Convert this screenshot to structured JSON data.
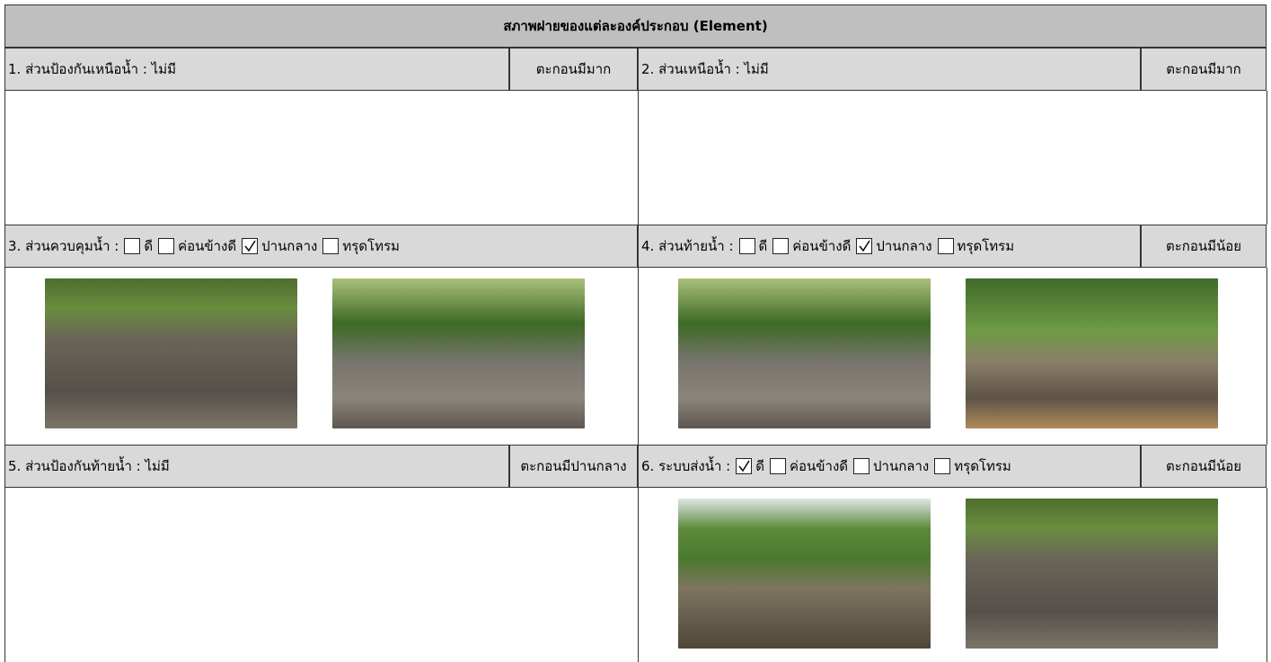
{
  "title": "สภาพฝายของแต่ละองค์ประกอบ (Element)",
  "sections": [
    {
      "label": "1. ส่วนป้องกันเหนือน้ำ : ไม่มี",
      "status": "ตะกอนมีมาก"
    },
    {
      "label": "2. ส่วนเหนือน้ำ : ไม่มี",
      "status": "ตะกอนมีมาก"
    },
    {
      "label": "3. ส่วนควบคุมน้ำ :",
      "options": [
        {
          "label": "ดี",
          "checked": false
        },
        {
          "label": "ค่อนข้างดี",
          "checked": false
        },
        {
          "label": "ปานกลาง",
          "checked": true
        },
        {
          "label": "ทรุดโทรม",
          "checked": false
        }
      ]
    },
    {
      "label": "4. ส่วนท้ายน้ำ :",
      "options": [
        {
          "label": "ดี",
          "checked": false
        },
        {
          "label": "ค่อนข้างดี",
          "checked": false
        },
        {
          "label": "ปานกลาง",
          "checked": true
        },
        {
          "label": "ทรุดโทรม",
          "checked": false
        }
      ],
      "status": "ตะกอนมีน้อย"
    },
    {
      "label": "5. ส่วนป้องกันท้ายน้ำ : ไม่มี",
      "status": "ตะกอนมีปานกลาง"
    },
    {
      "label": "6. ระบบส่งน้ำ :",
      "options": [
        {
          "label": "ดี",
          "checked": true
        },
        {
          "label": "ค่อนข้างดี",
          "checked": false
        },
        {
          "label": "ปานกลาง",
          "checked": false
        },
        {
          "label": "ทรุดโทรม",
          "checked": false
        }
      ],
      "status": "ตะกอนมีน้อย"
    }
  ]
}
